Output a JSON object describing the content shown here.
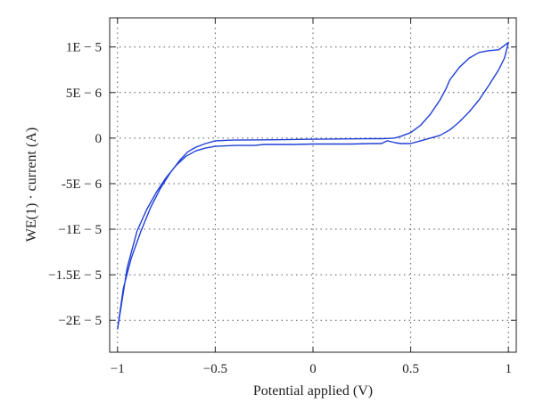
{
  "chart_data": {
    "type": "line",
    "xlabel": "Potential applied (V)",
    "ylabel": "WE(1) · current (A)",
    "xlim": [
      -1.04,
      1.04
    ],
    "ylim": [
      -2.35e-05,
      1.32e-05
    ],
    "grid": true,
    "grid_style": "dotted",
    "line_color": "#1f3fd6",
    "x_ticks": [
      {
        "value": -1,
        "label": "−1"
      },
      {
        "value": -0.5,
        "label": "−0.5"
      },
      {
        "value": 0,
        "label": "0"
      },
      {
        "value": 0.5,
        "label": "0.5"
      },
      {
        "value": 1,
        "label": "1"
      }
    ],
    "y_ticks": [
      {
        "value": 1e-05,
        "label": "1E − 5"
      },
      {
        "value": 5e-06,
        "label": "5E − 6"
      },
      {
        "value": 0,
        "label": "0"
      },
      {
        "value": -5e-06,
        "label": "-5E − 6"
      },
      {
        "value": -1e-05,
        "label": "−1E − 5"
      },
      {
        "value": -1.5e-05,
        "label": "−1.5E − 5"
      },
      {
        "value": -2e-05,
        "label": "−2E − 5"
      }
    ],
    "series": [
      {
        "x": [
          -1.0,
          -0.97,
          -0.93,
          -0.88,
          -0.83,
          -0.78,
          -0.73,
          -0.68,
          -0.64,
          -0.6,
          -0.55,
          -0.5,
          -0.45,
          -0.4,
          -0.3,
          -0.2,
          -0.1,
          0.0,
          0.1,
          0.2,
          0.3,
          0.35,
          0.38,
          0.4,
          0.42,
          0.45,
          0.5,
          0.55,
          0.6,
          0.65,
          0.68,
          0.7,
          0.75,
          0.8,
          0.85,
          0.9,
          0.95,
          1.0,
          0.98,
          0.95,
          0.9,
          0.85,
          0.8,
          0.75,
          0.7,
          0.65,
          0.6,
          0.55,
          0.5,
          0.45,
          0.42,
          0.38,
          0.35,
          0.3,
          0.2,
          0.1,
          0.0,
          -0.1,
          -0.2,
          -0.25,
          -0.3,
          -0.4,
          -0.5,
          -0.55,
          -0.6,
          -0.65,
          -0.7,
          -0.75,
          -0.8,
          -0.85,
          -0.9,
          -0.95,
          -1.0
        ],
        "y": [
          -2.1e-05,
          -1.65e-05,
          -1.32e-05,
          -1.02e-05,
          -7.6e-06,
          -5.5e-06,
          -3.8e-06,
          -2.4e-06,
          -1.5e-06,
          -1e-06,
          -6e-07,
          -3e-07,
          -2.5e-07,
          -2.2e-07,
          -2e-07,
          -1.8e-07,
          -1.5e-07,
          -1.2e-07,
          -1e-07,
          -8e-08,
          -6e-08,
          -6e-08,
          -4e-08,
          -2e-08,
          2e-08,
          2e-07,
          6e-07,
          1.4e-06,
          2.6e-06,
          4.2e-06,
          5.4e-06,
          6.4e-06,
          7.8e-06,
          8.8e-06,
          9.4e-06,
          9.6e-06,
          9.7e-06,
          1.05e-05,
          8.8e-06,
          7.5e-06,
          5.8e-06,
          4.2e-06,
          2.9e-06,
          1.8e-06,
          9e-07,
          3e-07,
          0.0,
          -3e-07,
          -6e-07,
          -6e-07,
          -5e-07,
          -3e-07,
          -6e-07,
          -6e-07,
          -6.5e-07,
          -6.5e-07,
          -6.5e-07,
          -7e-07,
          -7e-07,
          -7e-07,
          -8e-07,
          -8e-07,
          -9e-07,
          -1.1e-06,
          -1.4e-06,
          -2e-06,
          -3e-06,
          -4.3e-06,
          -5.9e-06,
          -7.8e-06,
          -1.02e-05,
          -1.42e-05,
          -2.1e-05
        ]
      }
    ]
  }
}
